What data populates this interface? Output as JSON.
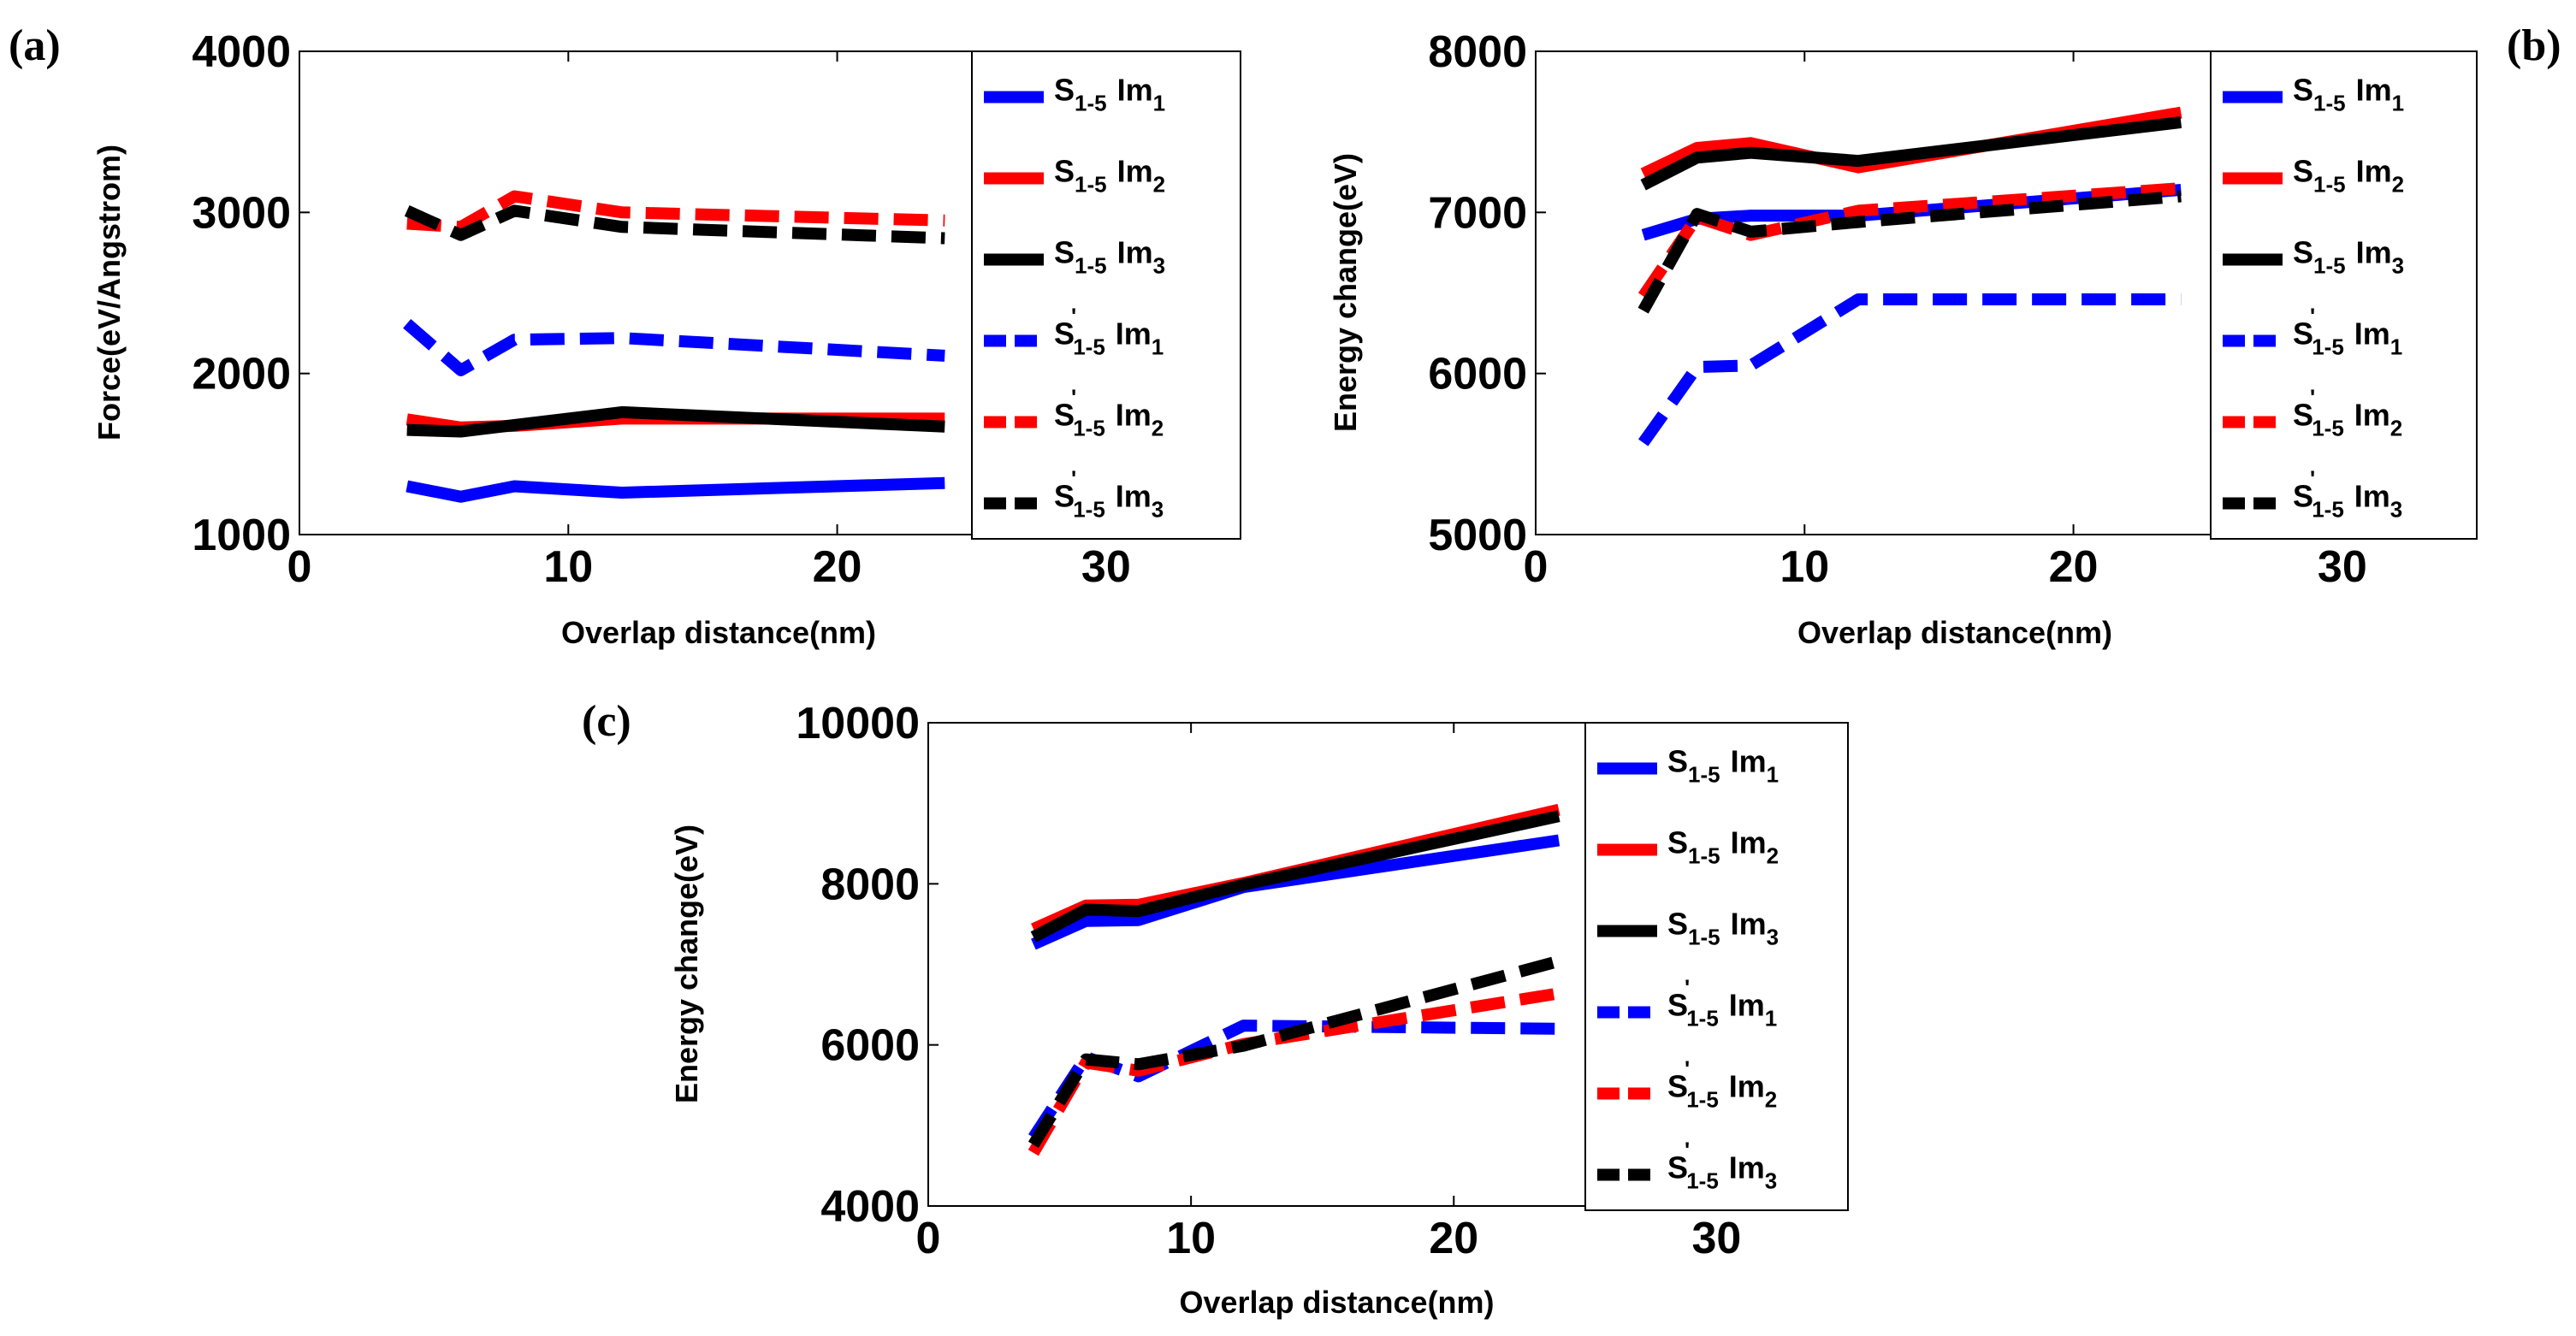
{
  "chart_data": [
    {
      "panel": "(a)",
      "type": "line",
      "ylabel": "Force(eV/Angstrom)",
      "xlabel": "Overlap distance(nm)",
      "xlim": [
        0,
        35
      ],
      "ylim": [
        1000,
        4000
      ],
      "xticks": [
        "0",
        "10",
        "20",
        "30"
      ],
      "yticks": [
        "1000",
        "2000",
        "3000",
        "4000"
      ],
      "grid": false,
      "legend_position": "right",
      "x": [
        4,
        6,
        8,
        12,
        24
      ],
      "series": [
        {
          "name": "S1-5 Im1",
          "base": "S",
          "prime": false,
          "sub1": "1-5",
          "im": "Im",
          "sub2": "1",
          "color": "#0000ff",
          "dashed": false,
          "values": [
            1300,
            1235,
            1300,
            1260,
            1320
          ]
        },
        {
          "name": "S1-5 Im2",
          "base": "S",
          "prime": false,
          "sub1": "1-5",
          "im": "Im",
          "sub2": "2",
          "color": "#ff0000",
          "dashed": false,
          "values": [
            1715,
            1665,
            1675,
            1720,
            1720
          ]
        },
        {
          "name": "S1-5 Im3",
          "base": "S",
          "prime": false,
          "sub1": "1-5",
          "im": "Im",
          "sub2": "3",
          "color": "#000000",
          "dashed": false,
          "values": [
            1650,
            1640,
            1680,
            1760,
            1670
          ]
        },
        {
          "name": "S'1-5 Im1",
          "base": "S",
          "prime": true,
          "sub1": "1-5",
          "im": "Im",
          "sub2": "1",
          "color": "#0000ff",
          "dashed": true,
          "values": [
            2310,
            2020,
            2210,
            2220,
            2110
          ]
        },
        {
          "name": "S'1-5 Im2",
          "base": "S",
          "prime": true,
          "sub1": "1-5",
          "im": "Im",
          "sub2": "2",
          "color": "#ff0000",
          "dashed": true,
          "values": [
            2930,
            2910,
            3100,
            3000,
            2950
          ]
        },
        {
          "name": "S'1-5 Im3",
          "base": "S",
          "prime": true,
          "sub1": "1-5",
          "im": "Im",
          "sub2": "3",
          "color": "#000000",
          "dashed": true,
          "values": [
            3010,
            2860,
            3010,
            2910,
            2840
          ]
        }
      ]
    },
    {
      "panel": "(b)",
      "type": "line",
      "ylabel": "Energy change(eV)",
      "xlabel": "Overlap distance(nm)",
      "xlim": [
        0,
        35
      ],
      "ylim": [
        5000,
        8000
      ],
      "xticks": [
        "0",
        "10",
        "20",
        "30"
      ],
      "yticks": [
        "5000",
        "6000",
        "7000",
        "8000"
      ],
      "grid": false,
      "legend_position": "right",
      "x": [
        4,
        6,
        8,
        12,
        24
      ],
      "series": [
        {
          "name": "S1-5 Im1",
          "base": "S",
          "prime": false,
          "sub1": "1-5",
          "im": "Im",
          "sub2": "1",
          "color": "#0000ff",
          "dashed": false,
          "values": [
            6860,
            6960,
            6980,
            6980,
            7140
          ]
        },
        {
          "name": "S1-5 Im2",
          "base": "S",
          "prime": false,
          "sub1": "1-5",
          "im": "Im",
          "sub2": "2",
          "color": "#ff0000",
          "dashed": false,
          "values": [
            7240,
            7400,
            7430,
            7280,
            7620
          ]
        },
        {
          "name": "S1-5 Im3",
          "base": "S",
          "prime": false,
          "sub1": "1-5",
          "im": "Im",
          "sub2": "3",
          "color": "#000000",
          "dashed": false,
          "values": [
            7170,
            7340,
            7370,
            7320,
            7560
          ]
        },
        {
          "name": "S'1-5 Im1",
          "base": "S",
          "prime": true,
          "sub1": "1-5",
          "im": "Im",
          "sub2": "1",
          "color": "#0000ff",
          "dashed": true,
          "values": [
            5570,
            6040,
            6050,
            6460,
            6460
          ]
        },
        {
          "name": "S'1-5 Im2",
          "base": "S",
          "prime": true,
          "sub1": "1-5",
          "im": "Im",
          "sub2": "2",
          "color": "#ff0000",
          "dashed": true,
          "values": [
            6480,
            6970,
            6860,
            7010,
            7150
          ]
        },
        {
          "name": "S'1-5 Im3",
          "base": "S",
          "prime": true,
          "sub1": "1-5",
          "im": "Im",
          "sub2": "3",
          "color": "#000000",
          "dashed": true,
          "values": [
            6390,
            6990,
            6880,
            6940,
            7100
          ]
        }
      ]
    },
    {
      "panel": "(c)",
      "type": "line",
      "ylabel": "Energy change(eV)",
      "xlabel": "Overlap distance(nm)",
      "xlim": [
        0,
        35
      ],
      "ylim": [
        4000,
        10000
      ],
      "xticks": [
        "0",
        "10",
        "20",
        "30"
      ],
      "yticks": [
        "4000",
        "6000",
        "8000",
        "10000"
      ],
      "grid": false,
      "legend_position": "right",
      "x": [
        4,
        6,
        8,
        12,
        24
      ],
      "series": [
        {
          "name": "S1-5 Im1",
          "base": "S",
          "prime": false,
          "sub1": "1-5",
          "im": "Im",
          "sub2": "1",
          "color": "#0000ff",
          "dashed": false,
          "values": [
            7250,
            7540,
            7550,
            7960,
            8540
          ]
        },
        {
          "name": "S1-5 Im2",
          "base": "S",
          "prime": false,
          "sub1": "1-5",
          "im": "Im",
          "sub2": "2",
          "color": "#ff0000",
          "dashed": false,
          "values": [
            7440,
            7730,
            7740,
            8010,
            8920
          ]
        },
        {
          "name": "S1-5 Im3",
          "base": "S",
          "prime": false,
          "sub1": "1-5",
          "im": "Im",
          "sub2": "3",
          "color": "#000000",
          "dashed": false,
          "values": [
            7340,
            7680,
            7660,
            7990,
            8840
          ]
        },
        {
          "name": "S'1-5 Im1",
          "base": "S",
          "prime": true,
          "sub1": "1-5",
          "im": "Im",
          "sub2": "1",
          "color": "#0000ff",
          "dashed": true,
          "values": [
            4850,
            5850,
            5610,
            6240,
            6200
          ]
        },
        {
          "name": "S'1-5 Im2",
          "base": "S",
          "prime": true,
          "sub1": "1-5",
          "im": "Im",
          "sub2": "2",
          "color": "#ff0000",
          "dashed": true,
          "values": [
            4660,
            5780,
            5680,
            6010,
            6640
          ]
        },
        {
          "name": "S'1-5 Im3",
          "base": "S",
          "prime": true,
          "sub1": "1-5",
          "im": "Im",
          "sub2": "3",
          "color": "#000000",
          "dashed": true,
          "values": [
            4760,
            5820,
            5760,
            5990,
            7040
          ]
        }
      ]
    }
  ]
}
